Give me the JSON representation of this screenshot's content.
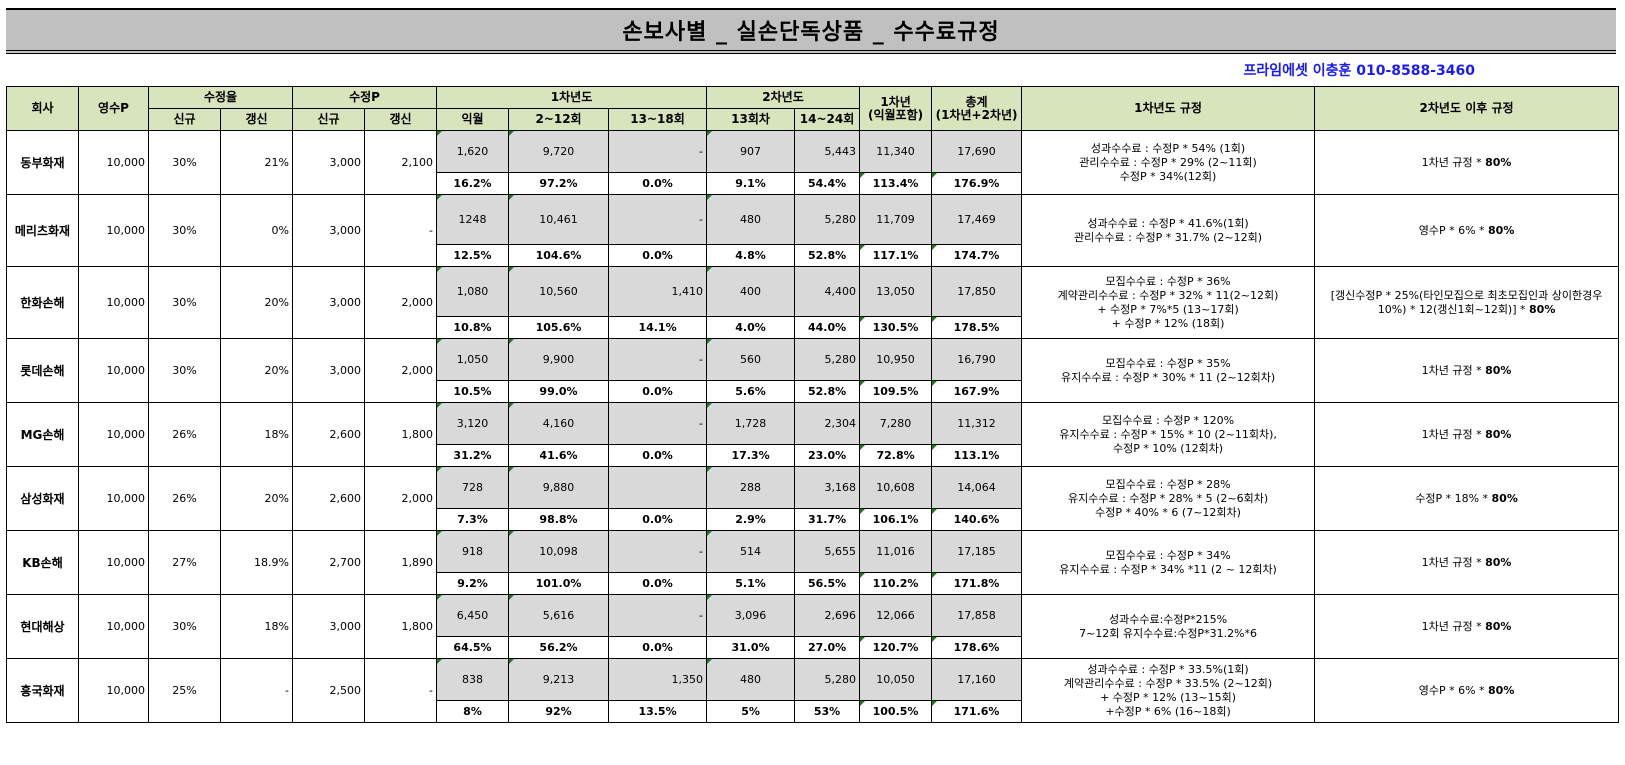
{
  "title": "손보사별 _ 실손단독상품 _ 수수료규정",
  "contact": "프라임에셋 이충훈 010-8588-3460",
  "headers": {
    "company": "회사",
    "premium": "영수P",
    "rate_group": "수정율",
    "rate_new": "신규",
    "rate_renew": "갱신",
    "adj_group": "수정P",
    "adj_new": "신규",
    "adj_renew": "갱신",
    "y1_group": "1차년도",
    "y1_next": "익월",
    "y1_2_12": "2~12회",
    "y1_13_18": "13~18회",
    "y2_group": "2차년도",
    "y2_13": "13회차",
    "y2_14_24": "14~24회",
    "y1_total_a": "1차년",
    "y1_total_b": "(익월포함)",
    "total_a": "총계",
    "total_b": "(1차년+2차년)",
    "rule1": "1차년도 규정",
    "rule2": "2차년도 이후 규정"
  },
  "rows": [
    {
      "company": "동부화재",
      "premium": "10,000",
      "rate_new": "30%",
      "rate_renew": "21%",
      "adj_new": "3,000",
      "adj_renew": "2,100",
      "v": [
        "1,620",
        "9,720",
        "-",
        "907",
        "5,443",
        "11,340",
        "17,690"
      ],
      "p": [
        "16.2%",
        "97.2%",
        "0.0%",
        "9.1%",
        "54.4%",
        "113.4%",
        "176.9%"
      ],
      "rule1": [
        "성과수수료 : 수정P * 54% (1회)",
        "관리수수료 : 수정P * 29% (2~11회)",
        "수정P * 34%(12회)"
      ],
      "rule2_text": "1차년 규정 * ",
      "rule2_bold": "80%"
    },
    {
      "company": "메리츠화재",
      "premium": "10,000",
      "rate_new": "30%",
      "rate_renew": "0%",
      "adj_new": "3,000",
      "adj_renew": "-",
      "v": [
        "1248",
        "10,461",
        "-",
        "480",
        "5,280",
        "11,709",
        "17,469"
      ],
      "p": [
        "12.5%",
        "104.6%",
        "0.0%",
        "4.8%",
        "52.8%",
        "117.1%",
        "174.7%"
      ],
      "rule1": [
        "성과수수료 : 수정P * 41.6%(1회)",
        "관리수수료 : 수정P * 31.7% (2~12회)"
      ],
      "rule2_text": "영수P * 6% * ",
      "rule2_bold": "80%"
    },
    {
      "company": "한화손해",
      "premium": "10,000",
      "rate_new": "30%",
      "rate_renew": "20%",
      "adj_new": "3,000",
      "adj_renew": "2,000",
      "v": [
        "1,080",
        "10,560",
        "1,410",
        "400",
        "4,400",
        "13,050",
        "17,850"
      ],
      "p": [
        "10.8%",
        "105.6%",
        "14.1%",
        "4.0%",
        "44.0%",
        "130.5%",
        "178.5%"
      ],
      "rule1": [
        "모집수수료 : 수정P * 36%",
        "계약관리수수료 : 수정P * 32% * 11(2~12회)",
        "+ 수정P * 7%*5 (13~17회)",
        "+ 수정P * 12% (18회)"
      ],
      "rule2_text": "[갱신수정P * 25%(타인모집으로 최초모집인과 상이한경우 10%) * 12(갱신1회~12회)] * ",
      "rule2_bold": "80%"
    },
    {
      "company": "롯데손해",
      "premium": "10,000",
      "rate_new": "30%",
      "rate_renew": "20%",
      "adj_new": "3,000",
      "adj_renew": "2,000",
      "v": [
        "1,050",
        "9,900",
        "-",
        "560",
        "5,280",
        "10,950",
        "16,790"
      ],
      "p": [
        "10.5%",
        "99.0%",
        "0.0%",
        "5.6%",
        "52.8%",
        "109.5%",
        "167.9%"
      ],
      "rule1": [
        "모집수수료 : 수정P * 35%",
        "유지수수료 : 수정P * 30% * 11 (2~12회차)"
      ],
      "rule2_text": "1차년 규정 * ",
      "rule2_bold": "80%"
    },
    {
      "company": "MG손해",
      "premium": "10,000",
      "rate_new": "26%",
      "rate_renew": "18%",
      "adj_new": "2,600",
      "adj_renew": "1,800",
      "v": [
        "3,120",
        "4,160",
        "-",
        "1,728",
        "2,304",
        "7,280",
        "11,312"
      ],
      "p": [
        "31.2%",
        "41.6%",
        "0.0%",
        "17.3%",
        "23.0%",
        "72.8%",
        "113.1%"
      ],
      "rule1": [
        "모집수수료 : 수정P * 120%",
        "유지수수료 : 수정P * 15% * 10 (2~11회차),",
        "수정P * 10% (12회차)"
      ],
      "rule2_text": "1차년 규정 * ",
      "rule2_bold": "80%"
    },
    {
      "company": "삼성화재",
      "premium": "10,000",
      "rate_new": "26%",
      "rate_renew": "20%",
      "adj_new": "2,600",
      "adj_renew": "2,000",
      "v": [
        "728",
        "9,880",
        "",
        "288",
        "3,168",
        "10,608",
        "14,064"
      ],
      "p": [
        "7.3%",
        "98.8%",
        "0.0%",
        "2.9%",
        "31.7%",
        "106.1%",
        "140.6%"
      ],
      "rule1": [
        "모집수수료 : 수정P * 28%",
        "유지수수료 : 수정P * 28% * 5 (2~6회차)",
        "수정P * 40% * 6 (7~12회차)"
      ],
      "rule2_text": "수정P * 18% * ",
      "rule2_bold": "80%"
    },
    {
      "company": "KB손해",
      "premium": "10,000",
      "rate_new": "27%",
      "rate_renew": "18.9%",
      "adj_new": "2,700",
      "adj_renew": "1,890",
      "v": [
        "918",
        "10,098",
        "-",
        "514",
        "5,655",
        "11,016",
        "17,185"
      ],
      "p": [
        "9.2%",
        "101.0%",
        "0.0%",
        "5.1%",
        "56.5%",
        "110.2%",
        "171.8%"
      ],
      "rule1": [
        "모집수수료 : 수정P * 34%",
        "유지수수료 : 수정P * 34% *11 (2 ~ 12회차)"
      ],
      "rule2_text": "1차년 규정 * ",
      "rule2_bold": "80%"
    },
    {
      "company": "현대해상",
      "premium": "10,000",
      "rate_new": "30%",
      "rate_renew": "18%",
      "adj_new": "3,000",
      "adj_renew": "1,800",
      "v": [
        "6,450",
        "5,616",
        "-",
        "3,096",
        "2,696",
        "12,066",
        "17,858"
      ],
      "p": [
        "64.5%",
        "56.2%",
        "0.0%",
        "31.0%",
        "27.0%",
        "120.7%",
        "178.6%"
      ],
      "rule1": [
        "성과수수료:수정P*215%",
        "7~12회 유지수수료:수정P*31.2%*6"
      ],
      "rule2_text": "1차년 규정 * ",
      "rule2_bold": "80%"
    },
    {
      "company": "흥국화재",
      "premium": "10,000",
      "rate_new": "25%",
      "rate_renew": "-",
      "adj_new": "2,500",
      "adj_renew": "-",
      "v": [
        "838",
        "9,213",
        "1,350",
        "480",
        "5,280",
        "10,050",
        "17,160"
      ],
      "p": [
        "8%",
        "92%",
        "13.5%",
        "5%",
        "53%",
        "100.5%",
        "171.6%"
      ],
      "rule1": [
        "성과수수료 : 수정P * 33.5%(1회)",
        "계약관리수수료 : 수정P * 33.5% (2~12회)",
        "+ 수정P * 12% (13~15회)",
        "+수정P * 6% (16~18회)"
      ],
      "rule2_text": "영수P * 6% * ",
      "rule2_bold": "80%"
    }
  ]
}
